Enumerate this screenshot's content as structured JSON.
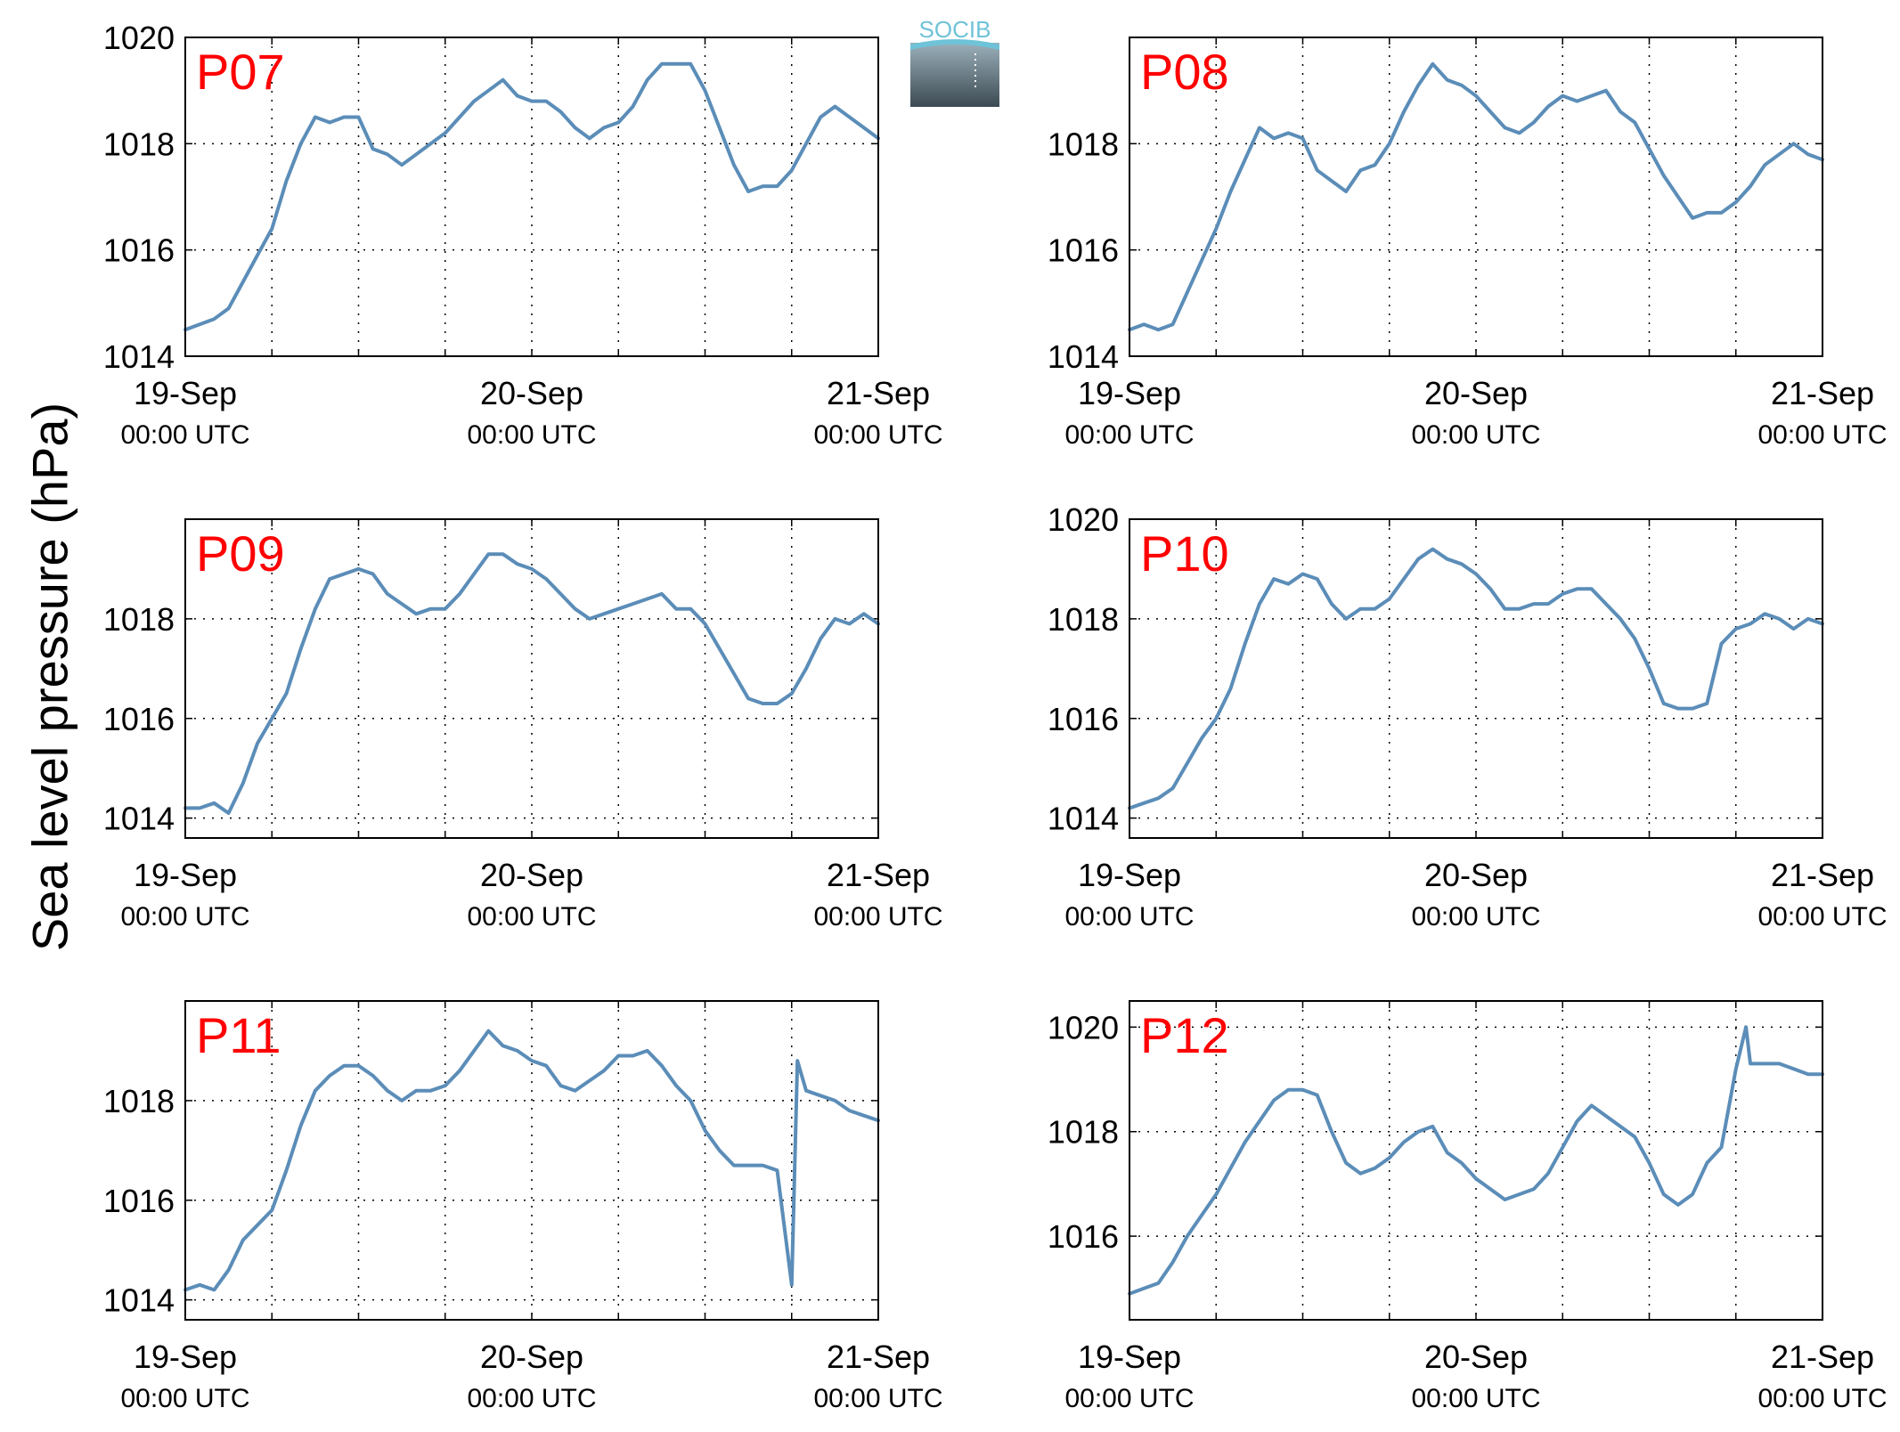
{
  "figure": {
    "ylabel": "Sea level pressure (hPa)",
    "logo_text": "SOCIB",
    "line_color": "#5b8db8",
    "label_color": "#ff0000",
    "x_tick_dates": [
      "19-Sep",
      "20-Sep",
      "21-Sep"
    ],
    "x_tick_times": [
      "00:00 UTC",
      "00:00 UTC",
      "00:00 UTC"
    ]
  },
  "chart_data": [
    {
      "type": "line",
      "name": "P07",
      "xlim": [
        0,
        48
      ],
      "ylim": [
        1014,
        1020
      ],
      "ytick_labels": [
        "1014",
        "1016",
        "1018",
        "1020"
      ],
      "grid": true,
      "points": [
        [
          0,
          1014.5
        ],
        [
          1,
          1014.6
        ],
        [
          2,
          1014.7
        ],
        [
          3,
          1014.9
        ],
        [
          4,
          1015.4
        ],
        [
          5,
          1015.9
        ],
        [
          6,
          1016.4
        ],
        [
          7,
          1017.3
        ],
        [
          8,
          1018.0
        ],
        [
          9,
          1018.5
        ],
        [
          10,
          1018.4
        ],
        [
          11,
          1018.5
        ],
        [
          12,
          1018.5
        ],
        [
          13,
          1017.9
        ],
        [
          14,
          1017.8
        ],
        [
          15,
          1017.6
        ],
        [
          16,
          1017.8
        ],
        [
          17,
          1018.0
        ],
        [
          18,
          1018.2
        ],
        [
          19,
          1018.5
        ],
        [
          20,
          1018.8
        ],
        [
          21,
          1019.0
        ],
        [
          22,
          1019.2
        ],
        [
          23,
          1018.9
        ],
        [
          24,
          1018.8
        ],
        [
          25,
          1018.8
        ],
        [
          26,
          1018.6
        ],
        [
          27,
          1018.3
        ],
        [
          28,
          1018.1
        ],
        [
          29,
          1018.3
        ],
        [
          30,
          1018.4
        ],
        [
          31,
          1018.7
        ],
        [
          32,
          1019.2
        ],
        [
          33,
          1019.5
        ],
        [
          34,
          1019.5
        ],
        [
          35,
          1019.5
        ],
        [
          36,
          1019.0
        ],
        [
          37,
          1018.3
        ],
        [
          38,
          1017.6
        ],
        [
          39,
          1017.1
        ],
        [
          40,
          1017.2
        ],
        [
          41,
          1017.2
        ],
        [
          42,
          1017.5
        ],
        [
          43,
          1018.0
        ],
        [
          44,
          1018.5
        ],
        [
          45,
          1018.7
        ],
        [
          46,
          1018.5
        ],
        [
          47,
          1018.3
        ],
        [
          48,
          1018.1
        ]
      ]
    },
    {
      "type": "line",
      "name": "P08",
      "xlim": [
        0,
        48
      ],
      "ylim": [
        1014,
        1020
      ],
      "ytick_labels": [
        "1014",
        "1016",
        "1018"
      ],
      "grid": true,
      "points": [
        [
          0,
          1014.5
        ],
        [
          1,
          1014.6
        ],
        [
          2,
          1014.5
        ],
        [
          3,
          1014.6
        ],
        [
          4,
          1015.2
        ],
        [
          5,
          1015.8
        ],
        [
          6,
          1016.4
        ],
        [
          7,
          1017.1
        ],
        [
          8,
          1017.7
        ],
        [
          9,
          1018.3
        ],
        [
          10,
          1018.1
        ],
        [
          11,
          1018.2
        ],
        [
          12,
          1018.1
        ],
        [
          13,
          1017.5
        ],
        [
          14,
          1017.3
        ],
        [
          15,
          1017.1
        ],
        [
          16,
          1017.5
        ],
        [
          17,
          1017.6
        ],
        [
          18,
          1018.0
        ],
        [
          19,
          1018.6
        ],
        [
          20,
          1019.1
        ],
        [
          21,
          1019.5
        ],
        [
          22,
          1019.2
        ],
        [
          23,
          1019.1
        ],
        [
          24,
          1018.9
        ],
        [
          25,
          1018.6
        ],
        [
          26,
          1018.3
        ],
        [
          27,
          1018.2
        ],
        [
          28,
          1018.4
        ],
        [
          29,
          1018.7
        ],
        [
          30,
          1018.9
        ],
        [
          31,
          1018.8
        ],
        [
          32,
          1018.9
        ],
        [
          33,
          1019.0
        ],
        [
          34,
          1018.6
        ],
        [
          35,
          1018.4
        ],
        [
          36,
          1017.9
        ],
        [
          37,
          1017.4
        ],
        [
          38,
          1017.0
        ],
        [
          39,
          1016.6
        ],
        [
          40,
          1016.7
        ],
        [
          41,
          1016.7
        ],
        [
          42,
          1016.9
        ],
        [
          43,
          1017.2
        ],
        [
          44,
          1017.6
        ],
        [
          45,
          1017.8
        ],
        [
          46,
          1018.0
        ],
        [
          47,
          1017.8
        ],
        [
          48,
          1017.7
        ]
      ]
    },
    {
      "type": "line",
      "name": "P09",
      "xlim": [
        0,
        48
      ],
      "ylim": [
        1013.6,
        1020
      ],
      "ytick_labels": [
        "1014",
        "1016",
        "1018"
      ],
      "grid": true,
      "points": [
        [
          0,
          1014.2
        ],
        [
          1,
          1014.2
        ],
        [
          2,
          1014.3
        ],
        [
          3,
          1014.1
        ],
        [
          4,
          1014.7
        ],
        [
          5,
          1015.5
        ],
        [
          6,
          1016.0
        ],
        [
          7,
          1016.5
        ],
        [
          8,
          1017.4
        ],
        [
          9,
          1018.2
        ],
        [
          10,
          1018.8
        ],
        [
          11,
          1018.9
        ],
        [
          12,
          1019.0
        ],
        [
          13,
          1018.9
        ],
        [
          14,
          1018.5
        ],
        [
          15,
          1018.3
        ],
        [
          16,
          1018.1
        ],
        [
          17,
          1018.2
        ],
        [
          18,
          1018.2
        ],
        [
          19,
          1018.5
        ],
        [
          20,
          1018.9
        ],
        [
          21,
          1019.3
        ],
        [
          22,
          1019.3
        ],
        [
          23,
          1019.1
        ],
        [
          24,
          1019.0
        ],
        [
          25,
          1018.8
        ],
        [
          26,
          1018.5
        ],
        [
          27,
          1018.2
        ],
        [
          28,
          1018.0
        ],
        [
          29,
          1018.1
        ],
        [
          30,
          1018.2
        ],
        [
          31,
          1018.3
        ],
        [
          32,
          1018.4
        ],
        [
          33,
          1018.5
        ],
        [
          34,
          1018.2
        ],
        [
          35,
          1018.2
        ],
        [
          36,
          1017.9
        ],
        [
          37,
          1017.4
        ],
        [
          38,
          1016.9
        ],
        [
          39,
          1016.4
        ],
        [
          40,
          1016.3
        ],
        [
          41,
          1016.3
        ],
        [
          42,
          1016.5
        ],
        [
          43,
          1017.0
        ],
        [
          44,
          1017.6
        ],
        [
          45,
          1018.0
        ],
        [
          46,
          1017.9
        ],
        [
          47,
          1018.1
        ],
        [
          48,
          1017.9
        ]
      ]
    },
    {
      "type": "line",
      "name": "P10",
      "xlim": [
        0,
        48
      ],
      "ylim": [
        1013.6,
        1020
      ],
      "ytick_labels": [
        "1014",
        "1016",
        "1018",
        "1020"
      ],
      "grid": true,
      "points": [
        [
          0,
          1014.2
        ],
        [
          1,
          1014.3
        ],
        [
          2,
          1014.4
        ],
        [
          3,
          1014.6
        ],
        [
          4,
          1015.1
        ],
        [
          5,
          1015.6
        ],
        [
          6,
          1016.0
        ],
        [
          7,
          1016.6
        ],
        [
          8,
          1017.5
        ],
        [
          9,
          1018.3
        ],
        [
          10,
          1018.8
        ],
        [
          11,
          1018.7
        ],
        [
          12,
          1018.9
        ],
        [
          13,
          1018.8
        ],
        [
          14,
          1018.3
        ],
        [
          15,
          1018.0
        ],
        [
          16,
          1018.2
        ],
        [
          17,
          1018.2
        ],
        [
          18,
          1018.4
        ],
        [
          19,
          1018.8
        ],
        [
          20,
          1019.2
        ],
        [
          21,
          1019.4
        ],
        [
          22,
          1019.2
        ],
        [
          23,
          1019.1
        ],
        [
          24,
          1018.9
        ],
        [
          25,
          1018.6
        ],
        [
          26,
          1018.2
        ],
        [
          27,
          1018.2
        ],
        [
          28,
          1018.3
        ],
        [
          29,
          1018.3
        ],
        [
          30,
          1018.5
        ],
        [
          31,
          1018.6
        ],
        [
          32,
          1018.6
        ],
        [
          33,
          1018.3
        ],
        [
          34,
          1018.0
        ],
        [
          35,
          1017.6
        ],
        [
          36,
          1017.0
        ],
        [
          37,
          1016.3
        ],
        [
          38,
          1016.2
        ],
        [
          39,
          1016.2
        ],
        [
          40,
          1016.3
        ],
        [
          41,
          1017.5
        ],
        [
          42,
          1017.8
        ],
        [
          43,
          1017.9
        ],
        [
          44,
          1018.1
        ],
        [
          45,
          1018.0
        ],
        [
          46,
          1017.8
        ],
        [
          47,
          1018.0
        ],
        [
          48,
          1017.9
        ]
      ]
    },
    {
      "type": "line",
      "name": "P11",
      "xlim": [
        0,
        48
      ],
      "ylim": [
        1013.6,
        1020
      ],
      "ytick_labels": [
        "1014",
        "1016",
        "1018"
      ],
      "grid": true,
      "points": [
        [
          0,
          1014.2
        ],
        [
          1,
          1014.3
        ],
        [
          2,
          1014.2
        ],
        [
          3,
          1014.6
        ],
        [
          4,
          1015.2
        ],
        [
          5,
          1015.5
        ],
        [
          6,
          1015.8
        ],
        [
          7,
          1016.6
        ],
        [
          8,
          1017.5
        ],
        [
          9,
          1018.2
        ],
        [
          10,
          1018.5
        ],
        [
          11,
          1018.7
        ],
        [
          12,
          1018.7
        ],
        [
          13,
          1018.5
        ],
        [
          14,
          1018.2
        ],
        [
          15,
          1018.0
        ],
        [
          16,
          1018.2
        ],
        [
          17,
          1018.2
        ],
        [
          18,
          1018.3
        ],
        [
          19,
          1018.6
        ],
        [
          20,
          1019.0
        ],
        [
          21,
          1019.4
        ],
        [
          22,
          1019.1
        ],
        [
          23,
          1019.0
        ],
        [
          24,
          1018.8
        ],
        [
          25,
          1018.7
        ],
        [
          26,
          1018.3
        ],
        [
          27,
          1018.2
        ],
        [
          28,
          1018.4
        ],
        [
          29,
          1018.6
        ],
        [
          30,
          1018.9
        ],
        [
          31,
          1018.9
        ],
        [
          32,
          1019.0
        ],
        [
          33,
          1018.7
        ],
        [
          34,
          1018.3
        ],
        [
          35,
          1018.0
        ],
        [
          36,
          1017.4
        ],
        [
          37,
          1017.0
        ],
        [
          38,
          1016.7
        ],
        [
          39,
          1016.7
        ],
        [
          40,
          1016.7
        ],
        [
          41,
          1016.6
        ],
        [
          42,
          1014.3
        ],
        [
          42.4,
          1018.8
        ],
        [
          43,
          1018.2
        ],
        [
          44,
          1018.1
        ],
        [
          45,
          1018.0
        ],
        [
          46,
          1017.8
        ],
        [
          47,
          1017.7
        ],
        [
          48,
          1017.6
        ]
      ]
    },
    {
      "type": "line",
      "name": "P12",
      "xlim": [
        0,
        48
      ],
      "ylim": [
        1014.4,
        1020.5
      ],
      "ytick_labels": [
        "1016",
        "1018",
        "1020"
      ],
      "grid": true,
      "points": [
        [
          0,
          1014.9
        ],
        [
          1,
          1015.0
        ],
        [
          2,
          1015.1
        ],
        [
          3,
          1015.5
        ],
        [
          4,
          1016.0
        ],
        [
          5,
          1016.4
        ],
        [
          6,
          1016.8
        ],
        [
          7,
          1017.3
        ],
        [
          8,
          1017.8
        ],
        [
          9,
          1018.2
        ],
        [
          10,
          1018.6
        ],
        [
          11,
          1018.8
        ],
        [
          12,
          1018.8
        ],
        [
          13,
          1018.7
        ],
        [
          14,
          1018.0
        ],
        [
          15,
          1017.4
        ],
        [
          16,
          1017.2
        ],
        [
          17,
          1017.3
        ],
        [
          18,
          1017.5
        ],
        [
          19,
          1017.8
        ],
        [
          20,
          1018.0
        ],
        [
          21,
          1018.1
        ],
        [
          22,
          1017.6
        ],
        [
          23,
          1017.4
        ],
        [
          24,
          1017.1
        ],
        [
          25,
          1016.9
        ],
        [
          26,
          1016.7
        ],
        [
          27,
          1016.8
        ],
        [
          28,
          1016.9
        ],
        [
          29,
          1017.2
        ],
        [
          30,
          1017.7
        ],
        [
          31,
          1018.2
        ],
        [
          32,
          1018.5
        ],
        [
          33,
          1018.3
        ],
        [
          34,
          1018.1
        ],
        [
          35,
          1017.9
        ],
        [
          36,
          1017.4
        ],
        [
          37,
          1016.8
        ],
        [
          38,
          1016.6
        ],
        [
          39,
          1016.8
        ],
        [
          40,
          1017.4
        ],
        [
          41,
          1017.7
        ],
        [
          42,
          1019.2
        ],
        [
          42.7,
          1020.0
        ],
        [
          43,
          1019.3
        ],
        [
          44,
          1019.3
        ],
        [
          45,
          1019.3
        ],
        [
          46,
          1019.2
        ],
        [
          47,
          1019.1
        ],
        [
          48,
          1019.1
        ]
      ]
    }
  ]
}
